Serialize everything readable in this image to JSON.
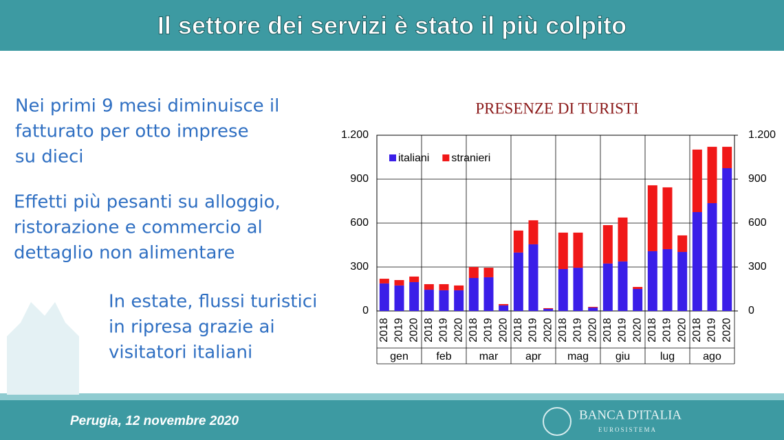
{
  "header": {
    "title": "Il settore dei servizi è stato il più colpito"
  },
  "bullets": [
    [
      "Nei primi 9 mesi diminuisce il",
      "fatturato per otto imprese",
      "su dieci"
    ],
    [
      "Effetti più pesanti su alloggio,",
      "ristorazione e commercio al",
      "dettaglio non alimentare"
    ],
    [
      "In estate, flussi turistici",
      "in ripresa grazie ai",
      "visitatori italiani"
    ]
  ],
  "footer": {
    "text": "Perugia, 12 novembre 2020"
  },
  "logo": {
    "name": "BANCA D'ITALIA",
    "subtitle": "EUROSISTEMA"
  },
  "chart_data": {
    "type": "stacked_bar",
    "title": "PRESENZE DI TURISTI",
    "categories": [
      "2018",
      "2019",
      "2020",
      "2018",
      "2019",
      "2020",
      "2018",
      "2019",
      "2020",
      "2018",
      "2019",
      "2020",
      "2018",
      "2019",
      "2020",
      "2018",
      "2019",
      "2020",
      "2018",
      "2019",
      "2020",
      "2018",
      "2019",
      "2020"
    ],
    "groups": [
      "gen",
      "feb",
      "mar",
      "apr",
      "mag",
      "giu",
      "lug",
      "ago"
    ],
    "series": [
      {
        "name": "italiani",
        "color": "#3a1ee8",
        "values": [
          188,
          174,
          197,
          145,
          141,
          141,
          225,
          230,
          38,
          399,
          455,
          14,
          286,
          295,
          23,
          324,
          338,
          150,
          408,
          422,
          403,
          675,
          736,
          975
        ]
      },
      {
        "name": "stranieri",
        "color": "#f01818",
        "values": [
          32,
          37,
          38,
          38,
          42,
          33,
          75,
          65,
          9,
          150,
          164,
          5,
          249,
          240,
          5,
          262,
          300,
          14,
          450,
          422,
          113,
          427,
          385,
          146
        ]
      }
    ],
    "ylim": [
      0,
      1200
    ],
    "yticks": [
      0,
      300,
      600,
      900,
      {
        "value": 1200,
        "label": "1.200"
      }
    ],
    "y2lim": [
      0,
      1200
    ],
    "y2ticks": [
      0,
      300,
      600,
      900,
      {
        "value": 1200,
        "label": "1.200"
      }
    ],
    "grid": true,
    "legend": "top-left"
  }
}
